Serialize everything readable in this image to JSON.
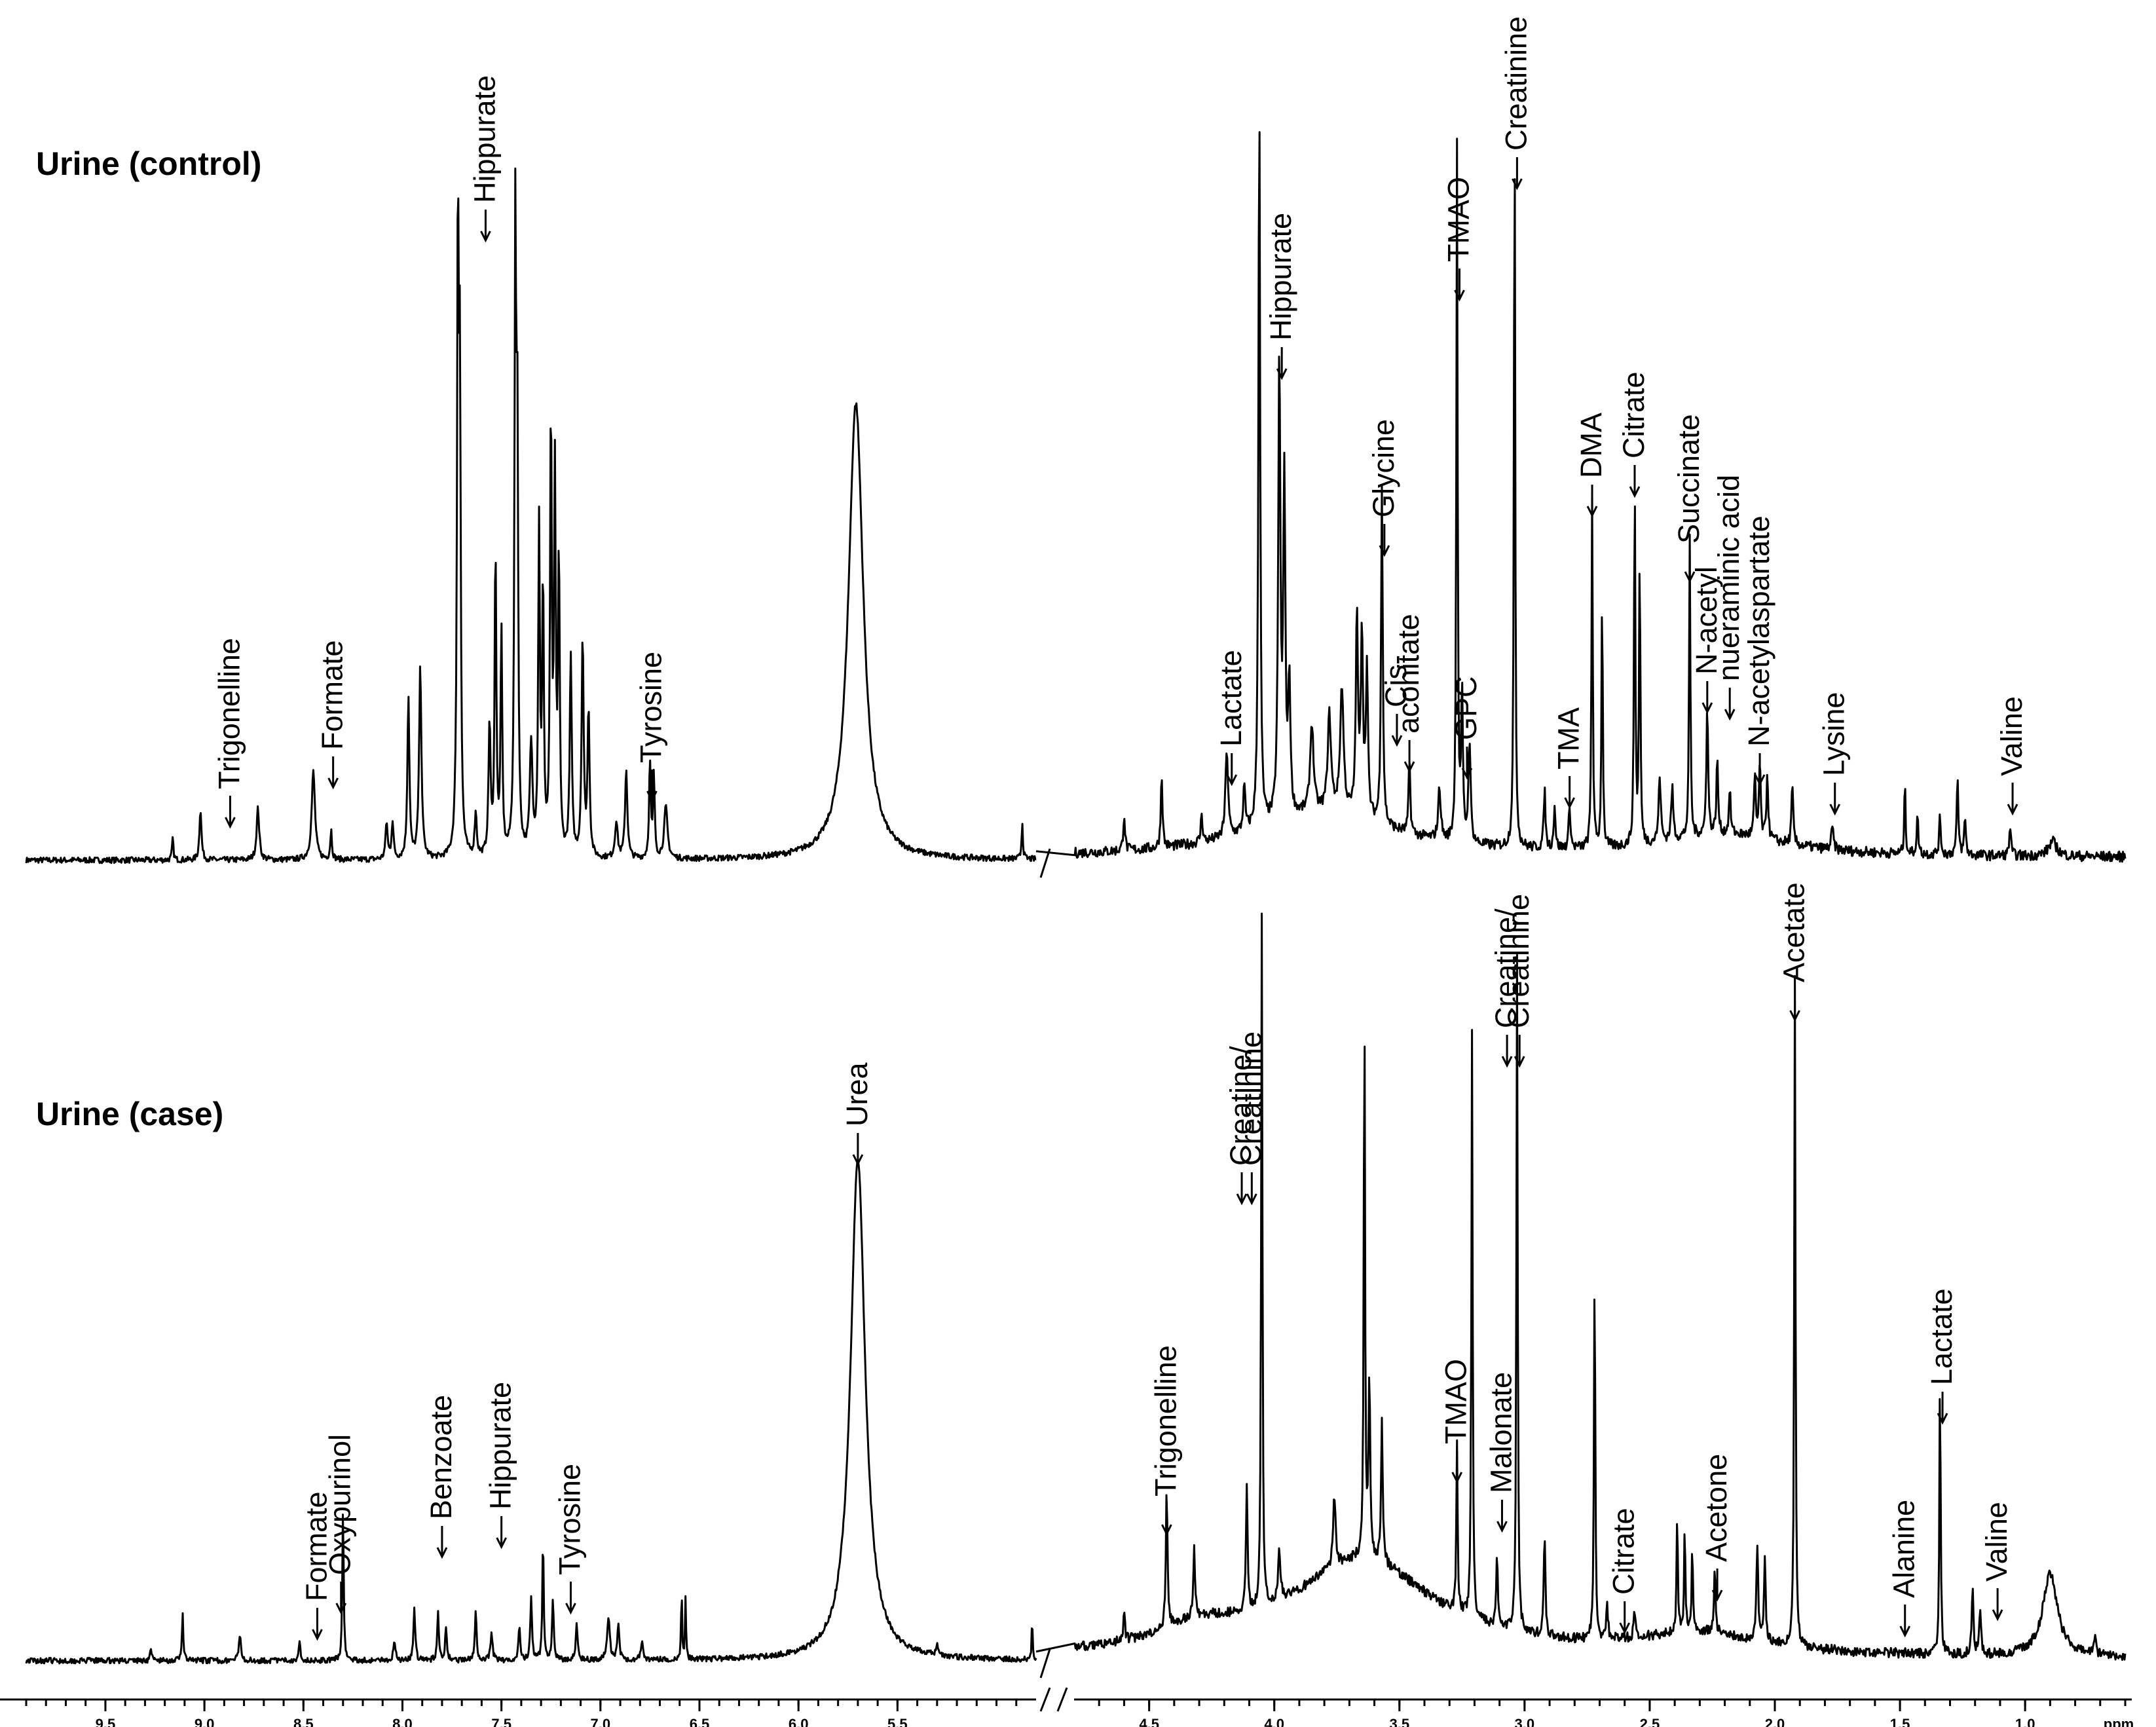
{
  "chart_data": {
    "type": "line",
    "xlabel": "ppm",
    "x_reversed": true,
    "x_ranges": [
      [
        9.9,
        4.8
      ],
      [
        4.8,
        0.6
      ]
    ],
    "x_ticks": [
      {
        "value": 9.5,
        "label": "9.5"
      },
      {
        "value": 9.0,
        "label": "9.0"
      },
      {
        "value": 8.5,
        "label": "8.5"
      },
      {
        "value": 8.0,
        "label": "8.0"
      },
      {
        "value": 7.5,
        "label": "7.5"
      },
      {
        "value": 7.0,
        "label": "7.0"
      },
      {
        "value": 6.5,
        "label": "6.5"
      },
      {
        "value": 6.0,
        "label": "6.0"
      },
      {
        "value": 5.5,
        "label": "5.5"
      },
      {
        "value": 4.5,
        "label": "4.5"
      },
      {
        "value": 4.0,
        "label": "4.0"
      },
      {
        "value": 3.5,
        "label": "3.5"
      },
      {
        "value": 3.0,
        "label": "3.0"
      },
      {
        "value": 2.5,
        "label": "2.5"
      },
      {
        "value": 2.0,
        "label": "2.0"
      },
      {
        "value": 1.5,
        "label": "1.5"
      },
      {
        "value": 1.0,
        "label": "1.0"
      }
    ],
    "x_unit_label": "ppm",
    "grid": false,
    "series": [
      {
        "name": "Urine (control)",
        "peaks": [
          [
            9.16,
            0.03,
            0.004
          ],
          [
            9.02,
            0.07,
            0.006
          ],
          [
            8.73,
            0.07,
            0.008
          ],
          [
            8.45,
            0.12,
            0.01
          ],
          [
            8.36,
            0.04,
            0.005
          ],
          [
            8.08,
            0.05,
            0.006
          ],
          [
            8.05,
            0.05,
            0.006
          ],
          [
            7.97,
            0.22,
            0.006
          ],
          [
            7.91,
            0.26,
            0.007
          ],
          [
            7.72,
            0.85,
            0.005
          ],
          [
            7.71,
            0.6,
            0.005
          ],
          [
            7.63,
            0.06,
            0.006
          ],
          [
            7.56,
            0.18,
            0.006
          ],
          [
            7.53,
            0.42,
            0.005
          ],
          [
            7.5,
            0.3,
            0.005
          ],
          [
            7.43,
            0.82,
            0.005
          ],
          [
            7.42,
            0.55,
            0.005
          ],
          [
            7.35,
            0.15,
            0.008
          ],
          [
            7.31,
            0.44,
            0.005
          ],
          [
            7.29,
            0.36,
            0.005
          ],
          [
            7.25,
            0.6,
            0.005
          ],
          [
            7.23,
            0.5,
            0.005
          ],
          [
            7.21,
            0.4,
            0.005
          ],
          [
            7.15,
            0.27,
            0.006
          ],
          [
            7.09,
            0.3,
            0.006
          ],
          [
            7.06,
            0.2,
            0.006
          ],
          [
            6.92,
            0.05,
            0.008
          ],
          [
            6.87,
            0.12,
            0.007
          ],
          [
            6.75,
            0.13,
            0.005
          ],
          [
            6.73,
            0.11,
            0.005
          ],
          [
            6.67,
            0.07,
            0.01
          ],
          [
            5.71,
            0.62,
            0.045
          ],
          [
            4.87,
            0.05,
            0.004
          ],
          [
            4.6,
            0.05,
            0.004
          ],
          [
            4.45,
            0.1,
            0.004
          ],
          [
            4.29,
            0.04,
            0.004
          ],
          [
            4.19,
            0.12,
            0.006
          ],
          [
            4.12,
            0.06,
            0.005
          ],
          [
            4.06,
            1.0,
            0.004
          ],
          [
            3.98,
            0.62,
            0.005
          ],
          [
            3.96,
            0.45,
            0.005
          ],
          [
            3.94,
            0.18,
            0.005
          ],
          [
            3.85,
            0.12,
            0.008
          ],
          [
            3.78,
            0.13,
            0.008
          ],
          [
            3.73,
            0.17,
            0.008
          ],
          [
            3.67,
            0.27,
            0.005
          ],
          [
            3.65,
            0.25,
            0.005
          ],
          [
            3.63,
            0.2,
            0.005
          ],
          [
            3.57,
            0.46,
            0.004
          ],
          [
            3.46,
            0.1,
            0.004
          ],
          [
            3.34,
            0.07,
            0.006
          ],
          [
            3.27,
            0.95,
            0.003
          ],
          [
            3.25,
            0.2,
            0.004
          ],
          [
            3.22,
            0.14,
            0.005
          ],
          [
            3.04,
            1.0,
            0.003
          ],
          [
            2.92,
            0.08,
            0.004
          ],
          [
            2.88,
            0.06,
            0.004
          ],
          [
            2.82,
            0.06,
            0.004
          ],
          [
            2.73,
            0.48,
            0.003
          ],
          [
            2.69,
            0.35,
            0.003
          ],
          [
            2.56,
            0.5,
            0.003
          ],
          [
            2.54,
            0.4,
            0.003
          ],
          [
            2.46,
            0.09,
            0.005
          ],
          [
            2.41,
            0.07,
            0.005
          ],
          [
            2.34,
            0.41,
            0.003
          ],
          [
            2.27,
            0.18,
            0.004
          ],
          [
            2.23,
            0.1,
            0.004
          ],
          [
            2.18,
            0.06,
            0.004
          ],
          [
            2.08,
            0.08,
            0.004
          ],
          [
            2.06,
            0.1,
            0.004
          ],
          [
            2.03,
            0.09,
            0.004
          ],
          [
            1.93,
            0.08,
            0.004
          ],
          [
            1.77,
            0.03,
            0.005
          ],
          [
            1.48,
            0.1,
            0.003
          ],
          [
            1.43,
            0.05,
            0.004
          ],
          [
            1.34,
            0.05,
            0.004
          ],
          [
            1.27,
            0.1,
            0.004
          ],
          [
            1.24,
            0.05,
            0.004
          ],
          [
            1.06,
            0.04,
            0.004
          ],
          [
            0.89,
            0.02,
            0.02
          ]
        ]
      },
      {
        "name": "Urine (case)",
        "peaks": [
          [
            9.27,
            0.02,
            0.004
          ],
          [
            9.11,
            0.07,
            0.004
          ],
          [
            8.82,
            0.04,
            0.006
          ],
          [
            8.52,
            0.03,
            0.005
          ],
          [
            8.3,
            0.22,
            0.004
          ],
          [
            8.04,
            0.03,
            0.006
          ],
          [
            7.94,
            0.08,
            0.005
          ],
          [
            7.82,
            0.07,
            0.005
          ],
          [
            7.78,
            0.05,
            0.005
          ],
          [
            7.63,
            0.07,
            0.005
          ],
          [
            7.55,
            0.04,
            0.006
          ],
          [
            7.41,
            0.05,
            0.005
          ],
          [
            7.35,
            0.09,
            0.005
          ],
          [
            7.29,
            0.18,
            0.004
          ],
          [
            7.24,
            0.09,
            0.005
          ],
          [
            7.12,
            0.05,
            0.006
          ],
          [
            6.96,
            0.06,
            0.008
          ],
          [
            6.91,
            0.05,
            0.006
          ],
          [
            6.79,
            0.03,
            0.006
          ],
          [
            6.59,
            0.1,
            0.003
          ],
          [
            6.57,
            0.09,
            0.003
          ],
          [
            5.7,
            0.72,
            0.045
          ],
          [
            5.3,
            0.02,
            0.004
          ],
          [
            4.82,
            0.06,
            0.003
          ],
          [
            4.6,
            0.04,
            0.004
          ],
          [
            4.43,
            0.2,
            0.004
          ],
          [
            4.32,
            0.1,
            0.004
          ],
          [
            4.11,
            0.18,
            0.004
          ],
          [
            4.05,
            1.0,
            0.003
          ],
          [
            3.98,
            0.07,
            0.006
          ],
          [
            3.76,
            0.1,
            0.006
          ],
          [
            3.64,
            0.8,
            0.003
          ],
          [
            3.62,
            0.25,
            0.004
          ],
          [
            3.57,
            0.2,
            0.004
          ],
          [
            3.27,
            0.25,
            0.003
          ],
          [
            3.21,
            0.84,
            0.003
          ],
          [
            3.11,
            0.1,
            0.004
          ],
          [
            3.03,
            0.98,
            0.003
          ],
          [
            2.92,
            0.14,
            0.004
          ],
          [
            2.72,
            0.55,
            0.003
          ],
          [
            2.67,
            0.05,
            0.004
          ],
          [
            2.56,
            0.04,
            0.004
          ],
          [
            2.39,
            0.17,
            0.003
          ],
          [
            2.36,
            0.15,
            0.003
          ],
          [
            2.33,
            0.12,
            0.003
          ],
          [
            2.24,
            0.09,
            0.004
          ],
          [
            2.07,
            0.14,
            0.004
          ],
          [
            2.04,
            0.12,
            0.004
          ],
          [
            1.92,
            0.96,
            0.003
          ],
          [
            1.34,
            0.4,
            0.003
          ],
          [
            1.21,
            0.1,
            0.004
          ],
          [
            1.18,
            0.07,
            0.004
          ],
          [
            0.9,
            0.12,
            0.035
          ],
          [
            0.72,
            0.03,
            0.004
          ]
        ]
      }
    ],
    "legend": "none"
  },
  "panels": {
    "control": {
      "title": "Urine (control)"
    },
    "case": {
      "title": "Urine (case)"
    }
  },
  "annotations": {
    "control": [
      {
        "text": "Trigonelline",
        "ppm": 8.87
      },
      {
        "text": "Formate",
        "ppm": 8.35
      },
      {
        "text": "Hippurate",
        "ppm": 7.58
      },
      {
        "text": "Tyrosine",
        "ppm": 6.74
      },
      {
        "text": "Lactate",
        "ppm": 4.17
      },
      {
        "text": "Hippurate",
        "ppm": 3.97
      },
      {
        "text": "Glycine",
        "ppm": 3.56
      },
      {
        "text": "Cis-",
        "ppm": 3.51
      },
      {
        "text": "aconitate",
        "ppm": 3.46
      },
      {
        "text": "GPC",
        "ppm": 3.23
      },
      {
        "text": "TMAO",
        "ppm": 3.26
      },
      {
        "text": "Creatinine",
        "ppm": 3.03
      },
      {
        "text": "TMA",
        "ppm": 2.82
      },
      {
        "text": "DMA",
        "ppm": 2.73
      },
      {
        "text": "Citrate",
        "ppm": 2.56
      },
      {
        "text": "Succinate",
        "ppm": 2.34
      },
      {
        "text": "N-acetyl",
        "ppm": 2.27
      },
      {
        "text": "nueraminic acid",
        "ppm": 2.18
      },
      {
        "text": "N-acetylaspartate",
        "ppm": 2.06
      },
      {
        "text": "Lysine",
        "ppm": 1.76
      },
      {
        "text": "Valine",
        "ppm": 1.05
      }
    ],
    "case": [
      {
        "text": "Formate",
        "ppm": 8.43
      },
      {
        "text": "Oxypurinol",
        "ppm": 8.31
      },
      {
        "text": "Benzoate",
        "ppm": 7.8
      },
      {
        "text": "Hippurate",
        "ppm": 7.5
      },
      {
        "text": "Tyrosine",
        "ppm": 7.15
      },
      {
        "text": "Urea",
        "ppm": 5.7
      },
      {
        "text": "Trigonelline",
        "ppm": 4.43
      },
      {
        "text": "Creatine/",
        "ppm": 4.13
      },
      {
        "text": "Creatinine",
        "ppm": 4.09
      },
      {
        "text": "TMAO",
        "ppm": 3.27
      },
      {
        "text": "Malonate",
        "ppm": 3.09
      },
      {
        "text": "Creatine/",
        "ppm": 3.07
      },
      {
        "text": "Creatinine",
        "ppm": 3.02
      },
      {
        "text": "Acetate",
        "ppm": 1.92
      },
      {
        "text": "Citrate",
        "ppm": 2.6
      },
      {
        "text": "Acetone",
        "ppm": 2.23
      },
      {
        "text": "Alanine",
        "ppm": 1.48
      },
      {
        "text": "Lactate",
        "ppm": 1.33
      },
      {
        "text": "Valine",
        "ppm": 1.11
      }
    ]
  }
}
